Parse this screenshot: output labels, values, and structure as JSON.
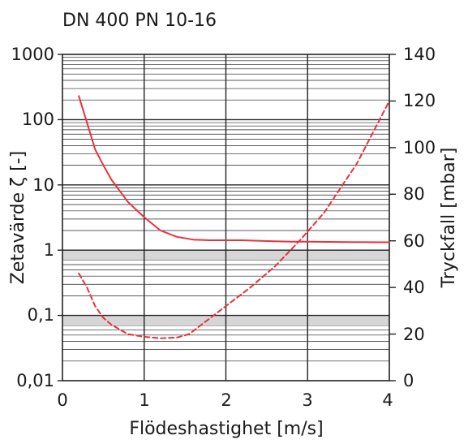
{
  "chart_data": {
    "type": "line",
    "title": "DN 400 PN 10-16",
    "xlabel": "Flödeshastighet [m/s]",
    "ylabel_left": "Zetavärde ζ [-]",
    "ylabel_right": "Tryckfall [mbar]",
    "xlim": [
      0,
      4
    ],
    "xticks": [
      "0",
      "1",
      "2",
      "3",
      "4"
    ],
    "ylim_left": [
      0.01,
      1000
    ],
    "yscale_left": "log",
    "yticks_left": [
      "0,01",
      "0,1",
      "1",
      "10",
      "100",
      "1000"
    ],
    "ylim_right": [
      0,
      140
    ],
    "yticks_right": [
      "0",
      "20",
      "40",
      "60",
      "80",
      "100",
      "120",
      "140"
    ],
    "grid": true,
    "colors": {
      "curve": "#e8323c",
      "grid": "#222222",
      "band": "#d6d6d6"
    },
    "series": [
      {
        "axis": "left",
        "style": "solid",
        "x": [
          0.2,
          0.3,
          0.4,
          0.5,
          0.6,
          0.8,
          1.0,
          1.2,
          1.4,
          1.6,
          1.8,
          2.0,
          2.2,
          2.5,
          2.8,
          3.0,
          3.5,
          4.0
        ],
        "y": [
          230,
          90,
          35,
          20,
          12,
          5.5,
          3.2,
          2.0,
          1.6,
          1.45,
          1.42,
          1.42,
          1.42,
          1.38,
          1.35,
          1.35,
          1.33,
          1.32
        ]
      },
      {
        "axis": "right",
        "style": "dashed",
        "x": [
          0.2,
          0.3,
          0.4,
          0.5,
          0.6,
          0.8,
          1.0,
          1.2,
          1.4,
          1.55,
          1.7,
          2.0,
          2.3,
          2.6,
          2.9,
          3.2,
          3.6,
          4.0
        ],
        "y": [
          46,
          40,
          32,
          27,
          24,
          20,
          18.8,
          18.2,
          18.5,
          20,
          24,
          32,
          40,
          49,
          60,
          72,
          93,
          120
        ]
      }
    ]
  }
}
